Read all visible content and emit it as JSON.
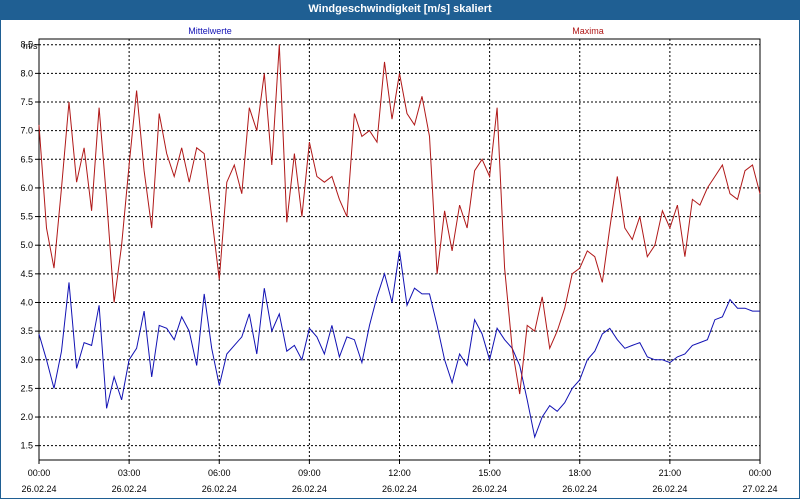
{
  "window": {
    "title": "Windgeschwindigkeit [m/s] skaliert"
  },
  "chart_data": {
    "type": "line",
    "title": "Windgeschwindigkeit [m/s] skaliert",
    "ylabel": "m/s",
    "xlabel": "",
    "ylim": [
      1.25,
      8.6
    ],
    "yticks": [
      "1.5",
      "2.0",
      "2.5",
      "3.0",
      "3.5",
      "4.0",
      "4.5",
      "5.0",
      "5.5",
      "6.0",
      "6.5",
      "7.0",
      "7.5",
      "8.0",
      "8.5"
    ],
    "xticks": [
      {
        "time": "00:00",
        "date": "26.02.24"
      },
      {
        "time": "03:00",
        "date": "26.02.24"
      },
      {
        "time": "06:00",
        "date": "26.02.24"
      },
      {
        "time": "09:00",
        "date": "26.02.24"
      },
      {
        "time": "12:00",
        "date": "26.02.24"
      },
      {
        "time": "15:00",
        "date": "26.02.24"
      },
      {
        "time": "18:00",
        "date": "26.02.24"
      },
      {
        "time": "21:00",
        "date": "26.02.24"
      },
      {
        "time": "00:00",
        "date": "27.02.24"
      }
    ],
    "grid": true,
    "legend_placement": "top",
    "x_unit": "hours since 26.02.24 00:00",
    "series": [
      {
        "name": "Mittelwerte",
        "color": "#1212b4",
        "x": [
          0,
          0.25,
          0.5,
          0.75,
          1,
          1.25,
          1.5,
          1.75,
          2,
          2.25,
          2.5,
          2.75,
          3,
          3.25,
          3.5,
          3.75,
          4,
          4.25,
          4.5,
          4.75,
          5,
          5.25,
          5.5,
          5.75,
          6,
          6.25,
          6.5,
          6.75,
          7,
          7.25,
          7.5,
          7.75,
          8,
          8.25,
          8.5,
          8.75,
          9,
          9.25,
          9.5,
          9.75,
          10,
          10.25,
          10.5,
          10.75,
          11,
          11.25,
          11.5,
          11.75,
          12,
          12.25,
          12.5,
          12.75,
          13,
          13.25,
          13.5,
          13.75,
          14,
          14.25,
          14.5,
          14.75,
          15,
          15.25,
          15.5,
          15.75,
          16,
          16.25,
          16.5,
          16.75,
          17,
          17.25,
          17.5,
          17.75,
          18,
          18.25,
          18.5,
          18.75,
          19,
          19.25,
          19.5,
          19.75,
          20,
          20.25,
          20.5,
          20.75,
          21,
          21.25,
          21.5,
          21.75,
          22,
          22.25,
          22.5,
          22.75,
          23,
          23.25,
          23.5,
          23.75,
          24
        ],
        "values": [
          3.45,
          3.0,
          2.5,
          3.15,
          4.35,
          2.85,
          3.3,
          3.25,
          3.95,
          2.15,
          2.7,
          2.3,
          3.0,
          3.2,
          3.85,
          2.7,
          3.6,
          3.55,
          3.35,
          3.75,
          3.5,
          2.9,
          4.15,
          3.2,
          2.55,
          3.1,
          3.25,
          3.4,
          3.8,
          3.1,
          4.25,
          3.5,
          3.8,
          3.15,
          3.25,
          3.0,
          3.55,
          3.4,
          3.1,
          3.6,
          3.05,
          3.4,
          3.35,
          2.95,
          3.6,
          4.1,
          4.5,
          4.0,
          4.9,
          3.95,
          4.25,
          4.15,
          4.15,
          3.6,
          3.0,
          2.6,
          3.1,
          2.9,
          3.7,
          3.45,
          3.0,
          3.55,
          3.35,
          3.2,
          2.9,
          2.3,
          1.65,
          2.0,
          2.2,
          2.1,
          2.25,
          2.5,
          2.65,
          3.0,
          3.15,
          3.45,
          3.55,
          3.35,
          3.2,
          3.25,
          3.3,
          3.05,
          3.0,
          3.0,
          2.95,
          3.05,
          3.1,
          3.25,
          3.3,
          3.35,
          3.7,
          3.75,
          4.05,
          3.9,
          3.9,
          3.85,
          3.85
        ]
      },
      {
        "name": "Maxima",
        "color": "#b01818",
        "x": [
          0,
          0.25,
          0.5,
          0.75,
          1,
          1.25,
          1.5,
          1.75,
          2,
          2.25,
          2.5,
          2.75,
          3,
          3.25,
          3.5,
          3.75,
          4,
          4.25,
          4.5,
          4.75,
          5,
          5.25,
          5.5,
          5.75,
          6,
          6.25,
          6.5,
          6.75,
          7,
          7.25,
          7.5,
          7.75,
          8,
          8.25,
          8.5,
          8.75,
          9,
          9.25,
          9.5,
          9.75,
          10,
          10.25,
          10.5,
          10.75,
          11,
          11.25,
          11.5,
          11.75,
          12,
          12.25,
          12.5,
          12.75,
          13,
          13.25,
          13.5,
          13.75,
          14,
          14.25,
          14.5,
          14.75,
          15,
          15.25,
          15.5,
          15.75,
          16,
          16.25,
          16.5,
          16.75,
          17,
          17.25,
          17.5,
          17.75,
          18,
          18.25,
          18.5,
          18.75,
          19,
          19.25,
          19.5,
          19.75,
          20,
          20.25,
          20.5,
          20.75,
          21,
          21.25,
          21.5,
          21.75,
          22,
          22.25,
          22.5,
          22.75,
          23,
          23.25,
          23.5,
          23.75,
          24
        ],
        "values": [
          7.1,
          5.3,
          4.6,
          6.0,
          7.5,
          6.1,
          6.7,
          5.6,
          7.4,
          5.8,
          4.0,
          5.0,
          6.4,
          7.7,
          6.3,
          5.3,
          7.3,
          6.6,
          6.2,
          6.7,
          6.1,
          6.7,
          6.6,
          5.5,
          4.4,
          6.1,
          6.4,
          5.9,
          7.4,
          7.0,
          8.0,
          6.4,
          8.5,
          5.4,
          6.6,
          5.5,
          6.8,
          6.2,
          6.1,
          6.2,
          5.8,
          5.5,
          7.3,
          6.9,
          7.0,
          6.8,
          8.2,
          7.2,
          8.0,
          7.3,
          7.1,
          7.6,
          6.9,
          4.5,
          5.6,
          4.9,
          5.7,
          5.3,
          6.3,
          6.5,
          6.2,
          7.4,
          4.6,
          3.2,
          2.4,
          3.6,
          3.5,
          4.1,
          3.2,
          3.5,
          3.9,
          4.5,
          4.6,
          4.9,
          4.8,
          4.35,
          5.3,
          6.2,
          5.3,
          5.1,
          5.5,
          4.8,
          5.0,
          5.6,
          5.3,
          5.7,
          4.8,
          5.8,
          5.7,
          6.0,
          6.2,
          6.4,
          5.9,
          5.8,
          6.3,
          6.4,
          5.9
        ]
      }
    ]
  }
}
